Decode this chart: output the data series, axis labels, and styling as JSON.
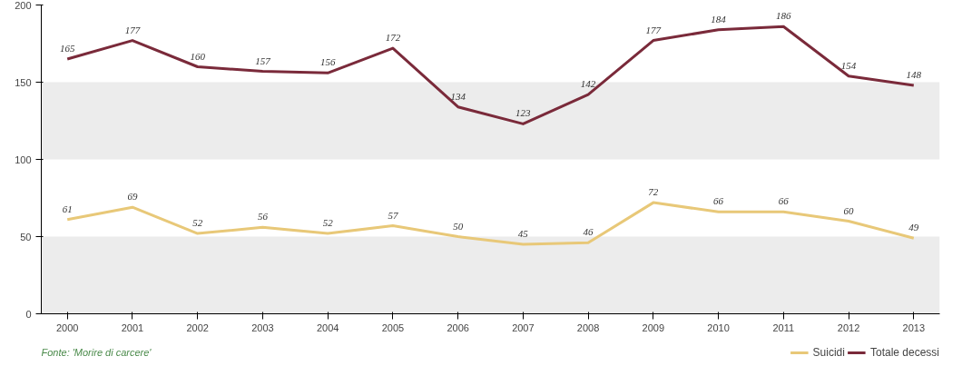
{
  "chart_data": {
    "type": "line",
    "categories": [
      "2000",
      "2001",
      "2002",
      "2003",
      "2004",
      "2005",
      "2006",
      "2007",
      "2008",
      "2009",
      "2010",
      "2011",
      "2012",
      "2013"
    ],
    "series": [
      {
        "name": "Suicidi",
        "color": "#e8c878",
        "values": [
          61,
          69,
          52,
          56,
          52,
          57,
          50,
          45,
          46,
          72,
          66,
          66,
          60,
          49
        ]
      },
      {
        "name": "Totale decessi",
        "color": "#7a2a3a",
        "values": [
          165,
          177,
          160,
          157,
          156,
          172,
          134,
          123,
          142,
          177,
          184,
          186,
          154,
          148
        ]
      }
    ],
    "ylim": [
      0,
      200
    ],
    "yticks": [
      0,
      50,
      100,
      150,
      200
    ],
    "bands": [
      {
        "axis": "y",
        "from": 0,
        "to": 50,
        "color": "#ececec"
      },
      {
        "axis": "y",
        "from": 100,
        "to": 150,
        "color": "#ececec"
      }
    ],
    "data_labels": true,
    "grid": false,
    "legend": "bottom right",
    "marker": "none",
    "line_style": "solid",
    "annotations": [
      "Fonte: 'Morire di carcere'"
    ]
  }
}
